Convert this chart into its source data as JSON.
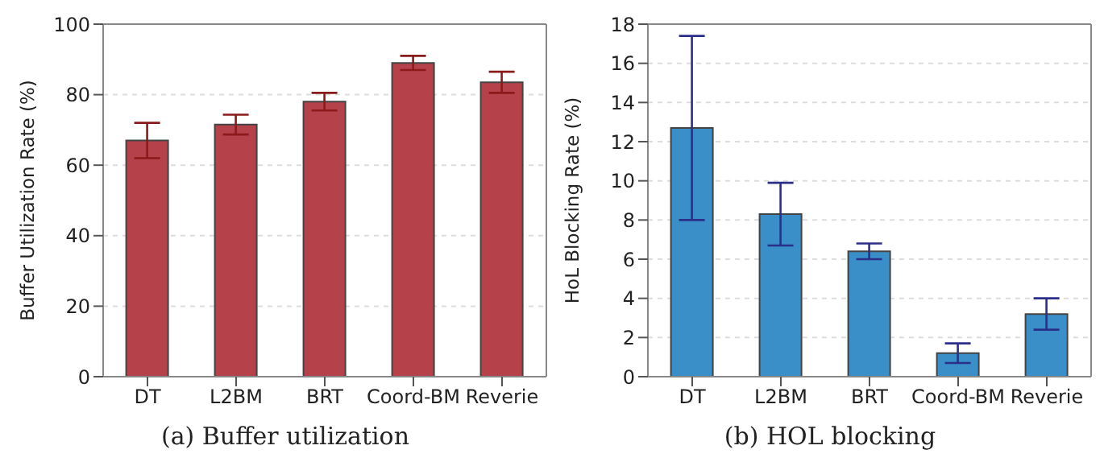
{
  "chart_data": [
    {
      "type": "bar",
      "title": "(a) Buffer utilization",
      "ylabel": "Buffer Utilization Rate (%)",
      "categories": [
        "DT",
        "L2BM",
        "BRT",
        "Coord-BM",
        "Reverie"
      ],
      "values": [
        67,
        71.5,
        78,
        89,
        83.5
      ],
      "errors": [
        5,
        2.8,
        2.5,
        2,
        3
      ],
      "color": "#b5424b",
      "ylim": [
        0,
        100
      ],
      "yticks": [
        0,
        20,
        40,
        60,
        80,
        100
      ],
      "grid": "y"
    },
    {
      "type": "bar",
      "title": "(b) HOL blocking",
      "ylabel": "HoL Blocking Rate (%)",
      "categories": [
        "DT",
        "L2BM",
        "BRT",
        "Coord-BM",
        "Reverie"
      ],
      "values": [
        12.7,
        8.3,
        6.4,
        1.2,
        3.2
      ],
      "errors": [
        4.7,
        1.6,
        0.4,
        0.5,
        0.8
      ],
      "color": "#3a8fc9",
      "ylim": [
        0,
        18
      ],
      "yticks": [
        0,
        2,
        4,
        6,
        8,
        10,
        12,
        14,
        16,
        18
      ],
      "grid": "y"
    }
  ]
}
